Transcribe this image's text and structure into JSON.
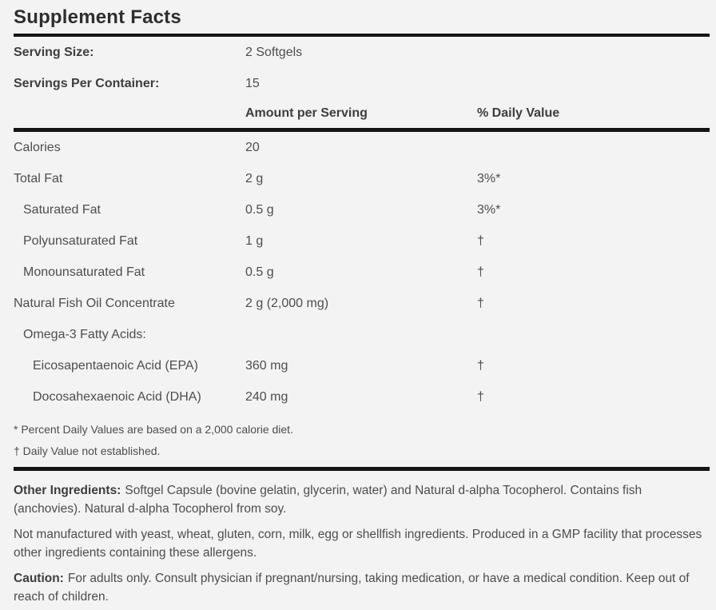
{
  "label": {
    "title": "Supplement Facts",
    "serving": [
      {
        "name": "Serving Size:",
        "value": "2 Softgels"
      },
      {
        "name": "Servings Per Container:",
        "value": "15"
      }
    ],
    "columns": {
      "amount": "Amount per Serving",
      "daily_value": "% Daily Value"
    },
    "rows": [
      {
        "name": "Calories",
        "amount": "20",
        "dv": ""
      },
      {
        "name": "Total Fat",
        "amount": "2 g",
        "dv": "3%*"
      },
      {
        "name": "Saturated Fat",
        "amount": "0.5 g",
        "dv": "3%*"
      },
      {
        "name": "Polyunsaturated Fat",
        "amount": "1 g",
        "dv": "†"
      },
      {
        "name": "Monounsaturated Fat",
        "amount": "0.5 g",
        "dv": "†"
      },
      {
        "name": "Natural Fish Oil Concentrate",
        "amount": "2 g (2,000 mg)",
        "dv": "†"
      },
      {
        "name": "Omega-3 Fatty Acids:",
        "amount": "",
        "dv": ""
      },
      {
        "name": "Eicosapentaenoic Acid (EPA)",
        "amount": "360 mg",
        "dv": "†"
      },
      {
        "name": "Docosahexaenoic Acid (DHA)",
        "amount": "240 mg",
        "dv": "†"
      }
    ],
    "footnotes": [
      "* Percent Daily Values are based on a 2,000 calorie diet.",
      "† Daily Value not established."
    ],
    "paragraphs": [
      {
        "lead": "Other Ingredients:",
        "text": "Softgel Capsule (bovine gelatin, glycerin, water) and Natural d-alpha Tocopherol. Contains fish (anchovies). Natural d-alpha Tocopherol from soy."
      },
      {
        "lead": "",
        "text": "Not manufactured with yeast, wheat, gluten, corn, milk, egg or shellfish ingredients. Produced in a GMP facility that processes other ingredients containing these allergens."
      },
      {
        "lead": "Caution:",
        "text": "For adults only. Consult physician if pregnant/nursing, taking medication, or have a medical condition. Keep out of reach of children."
      }
    ],
    "colors": {
      "background": "#f3f3f3",
      "rule": "#141414",
      "text": "#4d4d4d",
      "heading": "#2e2e2e"
    }
  }
}
